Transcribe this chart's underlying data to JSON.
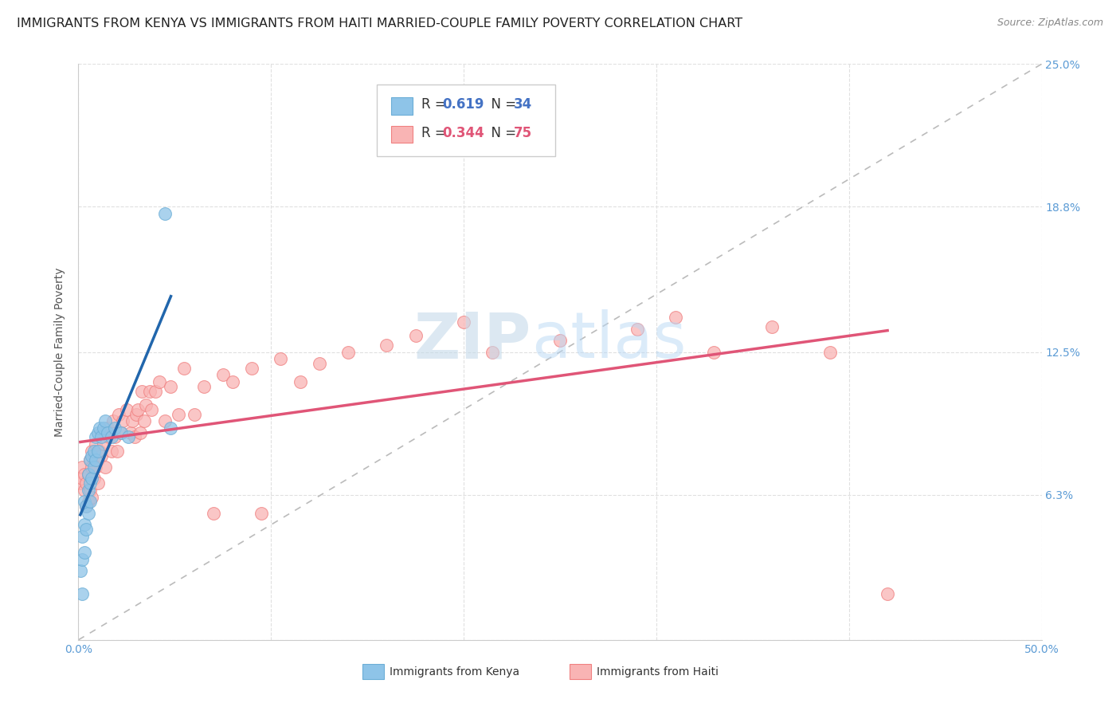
{
  "title": "IMMIGRANTS FROM KENYA VS IMMIGRANTS FROM HAITI MARRIED-COUPLE FAMILY POVERTY CORRELATION CHART",
  "source": "Source: ZipAtlas.com",
  "ylabel": "Married-Couple Family Poverty",
  "xlim": [
    0.0,
    0.5
  ],
  "ylim": [
    0.0,
    0.25
  ],
  "xticks": [
    0.0,
    0.1,
    0.2,
    0.3,
    0.4,
    0.5
  ],
  "xticklabels": [
    "0.0%",
    "",
    "",
    "",
    "",
    "50.0%"
  ],
  "yticks": [
    0.0,
    0.063,
    0.125,
    0.188,
    0.25
  ],
  "yticklabels": [
    "",
    "6.3%",
    "12.5%",
    "18.8%",
    "25.0%"
  ],
  "kenya_R": "0.619",
  "kenya_N": "34",
  "haiti_R": "0.344",
  "haiti_N": "75",
  "kenya_color": "#8ec4e8",
  "kenya_edge_color": "#6baed6",
  "haiti_color": "#f9b4b4",
  "haiti_edge_color": "#f08080",
  "kenya_line_color": "#2166ac",
  "haiti_line_color": "#e05577",
  "ref_line_color": "#bbbbbb",
  "watermark_zip_color": "#c8dff0",
  "watermark_atlas_color": "#b8d8f0",
  "background_color": "#ffffff",
  "grid_color": "#e0e0e0",
  "tick_color": "#5b9bd5",
  "title_fontsize": 11.5,
  "axis_label_fontsize": 10,
  "tick_fontsize": 10,
  "kenya_scatter_x": [
    0.001,
    0.002,
    0.002,
    0.002,
    0.003,
    0.003,
    0.003,
    0.004,
    0.004,
    0.005,
    0.005,
    0.005,
    0.006,
    0.006,
    0.006,
    0.007,
    0.007,
    0.008,
    0.008,
    0.009,
    0.009,
    0.01,
    0.01,
    0.011,
    0.012,
    0.013,
    0.014,
    0.015,
    0.017,
    0.019,
    0.022,
    0.026,
    0.045,
    0.048
  ],
  "kenya_scatter_y": [
    0.03,
    0.02,
    0.035,
    0.045,
    0.038,
    0.05,
    0.06,
    0.048,
    0.058,
    0.055,
    0.065,
    0.072,
    0.06,
    0.068,
    0.078,
    0.07,
    0.08,
    0.075,
    0.082,
    0.078,
    0.088,
    0.082,
    0.09,
    0.092,
    0.088,
    0.092,
    0.095,
    0.09,
    0.088,
    0.092,
    0.09,
    0.088,
    0.185,
    0.092
  ],
  "haiti_scatter_x": [
    0.001,
    0.002,
    0.002,
    0.003,
    0.003,
    0.004,
    0.004,
    0.005,
    0.005,
    0.006,
    0.006,
    0.007,
    0.007,
    0.007,
    0.008,
    0.008,
    0.009,
    0.009,
    0.01,
    0.01,
    0.011,
    0.012,
    0.012,
    0.013,
    0.014,
    0.014,
    0.015,
    0.016,
    0.017,
    0.018,
    0.019,
    0.02,
    0.021,
    0.022,
    0.023,
    0.025,
    0.027,
    0.028,
    0.029,
    0.03,
    0.031,
    0.032,
    0.033,
    0.034,
    0.035,
    0.037,
    0.038,
    0.04,
    0.042,
    0.045,
    0.048,
    0.052,
    0.055,
    0.06,
    0.065,
    0.07,
    0.075,
    0.08,
    0.09,
    0.095,
    0.105,
    0.115,
    0.125,
    0.14,
    0.16,
    0.175,
    0.2,
    0.215,
    0.25,
    0.29,
    0.31,
    0.33,
    0.36,
    0.39,
    0.42
  ],
  "haiti_scatter_y": [
    0.068,
    0.07,
    0.075,
    0.065,
    0.072,
    0.058,
    0.068,
    0.06,
    0.072,
    0.065,
    0.078,
    0.062,
    0.075,
    0.082,
    0.07,
    0.08,
    0.075,
    0.085,
    0.078,
    0.068,
    0.082,
    0.09,
    0.08,
    0.085,
    0.09,
    0.075,
    0.092,
    0.088,
    0.082,
    0.095,
    0.088,
    0.082,
    0.098,
    0.09,
    0.095,
    0.1,
    0.09,
    0.095,
    0.088,
    0.098,
    0.1,
    0.09,
    0.108,
    0.095,
    0.102,
    0.108,
    0.1,
    0.108,
    0.112,
    0.095,
    0.11,
    0.098,
    0.118,
    0.098,
    0.11,
    0.055,
    0.115,
    0.112,
    0.118,
    0.055,
    0.122,
    0.112,
    0.12,
    0.125,
    0.128,
    0.132,
    0.138,
    0.125,
    0.13,
    0.135,
    0.14,
    0.125,
    0.136,
    0.125,
    0.02
  ],
  "kenya_line_x0": 0.001,
  "kenya_line_x1": 0.048,
  "haiti_line_x0": 0.001,
  "haiti_line_x1": 0.42
}
